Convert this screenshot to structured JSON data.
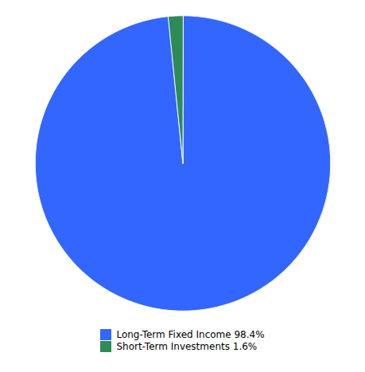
{
  "chart_data": {
    "type": "pie",
    "categories": [
      "Long-Term Fixed Income 98.4%",
      "Short-Term Investments 1.6%"
    ],
    "values": [
      98.4,
      1.6
    ],
    "colors": [
      "#3366ff",
      "#2e8b57"
    ],
    "legend": "bottom"
  }
}
